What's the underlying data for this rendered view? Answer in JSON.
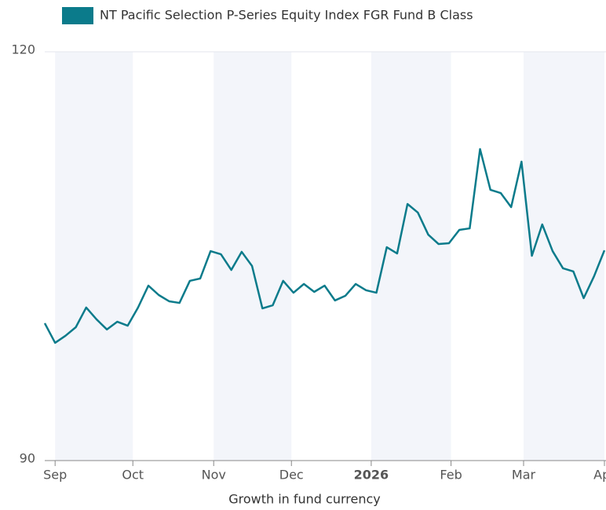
{
  "chart_data": {
    "type": "line",
    "series": [
      {
        "name": "NT Pacific Selection P-Series Equity Index FGR Fund B Class",
        "color": "#0b7b8b",
        "values": [
          100.08,
          98.64,
          99.16,
          99.79,
          101.23,
          100.36,
          99.62,
          100.19,
          99.9,
          101.23,
          102.84,
          102.15,
          101.69,
          101.57,
          103.19,
          103.36,
          105.37,
          105.14,
          103.99,
          105.32,
          104.28,
          101.17,
          101.4,
          103.19,
          102.32,
          102.96,
          102.38,
          102.84,
          101.75,
          102.09,
          102.96,
          102.5,
          102.32,
          105.66,
          105.2,
          108.83,
          108.2,
          106.58,
          105.89,
          105.95,
          106.93,
          107.04,
          112.86,
          109.87,
          109.63,
          108.6,
          111.94,
          105.03,
          107.33,
          105.37,
          104.11,
          103.88,
          101.92,
          103.53,
          105.43
        ]
      }
    ],
    "x": [
      0,
      1,
      2,
      3,
      4,
      5,
      6,
      7,
      8,
      9,
      10,
      11,
      12,
      13,
      14,
      15,
      16,
      17,
      18,
      19,
      20,
      21,
      22,
      23,
      24,
      25,
      26,
      27,
      28,
      29,
      30,
      31,
      32,
      33,
      34,
      35,
      36,
      37,
      38,
      39,
      40,
      41,
      42,
      43,
      44,
      45,
      46,
      47,
      48,
      49,
      50,
      51,
      52,
      53,
      54
    ],
    "xlim": [
      0,
      54
    ],
    "xticks": [
      {
        "value": 1.0,
        "label": "Sep"
      },
      {
        "value": 8.5,
        "label": "Oct"
      },
      {
        "value": 16.3,
        "label": "Nov"
      },
      {
        "value": 23.8,
        "label": "Dec"
      },
      {
        "value": 31.5,
        "label": "2026"
      },
      {
        "value": 39.2,
        "label": "Feb"
      },
      {
        "value": 46.2,
        "label": "Mar"
      },
      {
        "value": 54.0,
        "label": "Apr"
      }
    ],
    "ylim": [
      90,
      120
    ],
    "yticks": [
      90,
      120
    ],
    "xlabel": "Growth in fund currency",
    "bold_xtick": 4,
    "alternate_bands": true
  }
}
